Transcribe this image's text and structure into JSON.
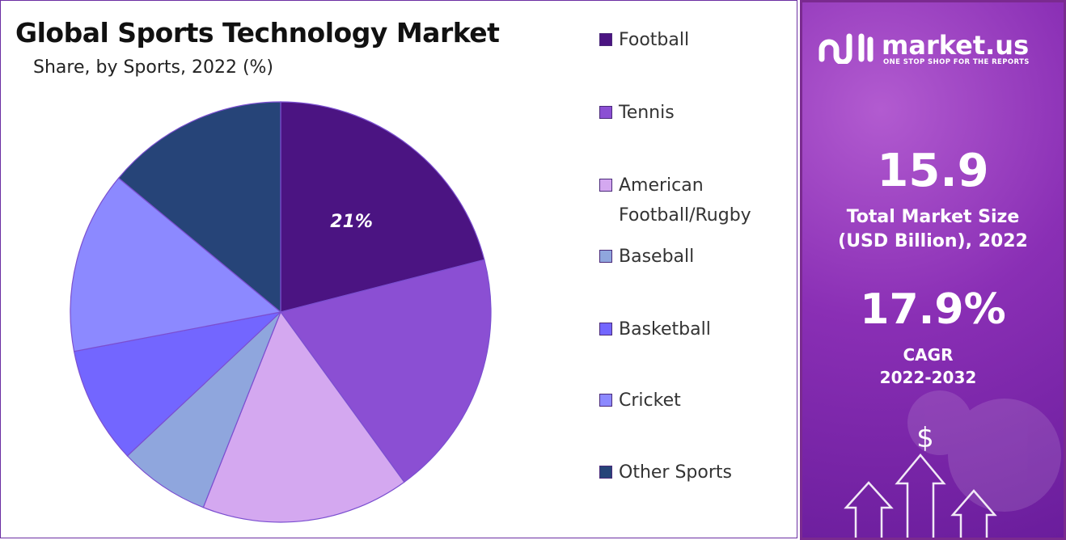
{
  "chart_data": {
    "type": "pie",
    "title": "Global Sports Technology Market",
    "subtitle": "Share, by Sports, 2022 (%)",
    "categories": [
      "Football",
      "Tennis",
      "American Football/Rugby",
      "Baseball",
      "Basketball",
      "Cricket",
      "Other Sports"
    ],
    "values": [
      21,
      19,
      16,
      7,
      9,
      14,
      14
    ],
    "data_labels": [
      "21%",
      "",
      "",
      "",
      "",
      "",
      ""
    ],
    "colors": [
      "#4b1482",
      "#8b4fd3",
      "#d4a8f0",
      "#8fa6dd",
      "#7366ff",
      "#8c89ff",
      "#264478"
    ],
    "legend_position": "right"
  },
  "legend": {
    "items": [
      {
        "label": "Football",
        "color": "#4b1482"
      },
      {
        "label": "Tennis",
        "color": "#8b4fd3"
      },
      {
        "label": "American Football/Rugby",
        "color": "#d4a8f0"
      },
      {
        "label": "Baseball",
        "color": "#8fa6dd"
      },
      {
        "label": "Basketball",
        "color": "#7366ff"
      },
      {
        "label": "Cricket",
        "color": "#8c89ff"
      },
      {
        "label": "Other Sports",
        "color": "#264478"
      }
    ]
  },
  "info": {
    "brand": "market.us",
    "tagline": "ONE STOP SHOP FOR THE REPORTS",
    "market_size": "15.9",
    "market_size_label_1": "Total Market Size",
    "market_size_label_2": "(USD Billion), 2022",
    "cagr": "17.9%",
    "cagr_label_1": "CAGR",
    "cagr_label_2": "2022-2032",
    "currency_icon": "dollar-arrows-icon"
  }
}
